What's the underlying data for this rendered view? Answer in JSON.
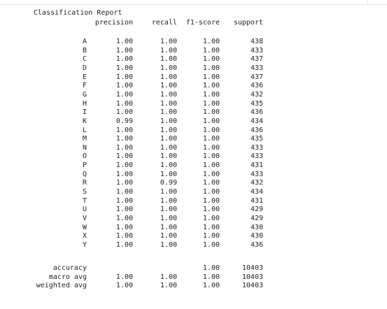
{
  "report": {
    "title": "Classification Report",
    "headers": {
      "precision": "precision",
      "recall": "recall",
      "f1": "f1-score",
      "support": "support"
    },
    "rows": [
      {
        "label": "A",
        "precision": "1.00",
        "recall": "1.00",
        "f1": "1.00",
        "support": "438"
      },
      {
        "label": "B",
        "precision": "1.00",
        "recall": "1.00",
        "f1": "1.00",
        "support": "433"
      },
      {
        "label": "C",
        "precision": "1.00",
        "recall": "1.00",
        "f1": "1.00",
        "support": "437"
      },
      {
        "label": "D",
        "precision": "1.00",
        "recall": "1.00",
        "f1": "1.00",
        "support": "433"
      },
      {
        "label": "E",
        "precision": "1.00",
        "recall": "1.00",
        "f1": "1.00",
        "support": "437"
      },
      {
        "label": "F",
        "precision": "1.00",
        "recall": "1.00",
        "f1": "1.00",
        "support": "436"
      },
      {
        "label": "G",
        "precision": "1.00",
        "recall": "1.00",
        "f1": "1.00",
        "support": "432"
      },
      {
        "label": "H",
        "precision": "1.00",
        "recall": "1.00",
        "f1": "1.00",
        "support": "435"
      },
      {
        "label": "I",
        "precision": "1.00",
        "recall": "1.00",
        "f1": "1.00",
        "support": "436"
      },
      {
        "label": "K",
        "precision": "0.99",
        "recall": "1.00",
        "f1": "1.00",
        "support": "434"
      },
      {
        "label": "L",
        "precision": "1.00",
        "recall": "1.00",
        "f1": "1.00",
        "support": "436"
      },
      {
        "label": "M",
        "precision": "1.00",
        "recall": "1.00",
        "f1": "1.00",
        "support": "435"
      },
      {
        "label": "N",
        "precision": "1.00",
        "recall": "1.00",
        "f1": "1.00",
        "support": "433"
      },
      {
        "label": "O",
        "precision": "1.00",
        "recall": "1.00",
        "f1": "1.00",
        "support": "433"
      },
      {
        "label": "P",
        "precision": "1.00",
        "recall": "1.00",
        "f1": "1.00",
        "support": "431"
      },
      {
        "label": "Q",
        "precision": "1.00",
        "recall": "1.00",
        "f1": "1.00",
        "support": "433"
      },
      {
        "label": "R",
        "precision": "1.00",
        "recall": "0.99",
        "f1": "1.00",
        "support": "432"
      },
      {
        "label": "S",
        "precision": "1.00",
        "recall": "1.00",
        "f1": "1.00",
        "support": "434"
      },
      {
        "label": "T",
        "precision": "1.00",
        "recall": "1.00",
        "f1": "1.00",
        "support": "431"
      },
      {
        "label": "U",
        "precision": "1.00",
        "recall": "1.00",
        "f1": "1.00",
        "support": "429"
      },
      {
        "label": "V",
        "precision": "1.00",
        "recall": "1.00",
        "f1": "1.00",
        "support": "429"
      },
      {
        "label": "W",
        "precision": "1.00",
        "recall": "1.00",
        "f1": "1.00",
        "support": "430"
      },
      {
        "label": "X",
        "precision": "1.00",
        "recall": "1.00",
        "f1": "1.00",
        "support": "430"
      },
      {
        "label": "Y",
        "precision": "1.00",
        "recall": "1.00",
        "f1": "1.00",
        "support": "436"
      }
    ],
    "summary": [
      {
        "label": "accuracy",
        "precision": "",
        "recall": "",
        "f1": "1.00",
        "support": "10403"
      },
      {
        "label": "macro avg",
        "precision": "1.00",
        "recall": "1.00",
        "f1": "1.00",
        "support": "10403"
      },
      {
        "label": "weighted avg",
        "precision": "1.00",
        "recall": "1.00",
        "f1": "1.00",
        "support": "10403"
      }
    ]
  }
}
